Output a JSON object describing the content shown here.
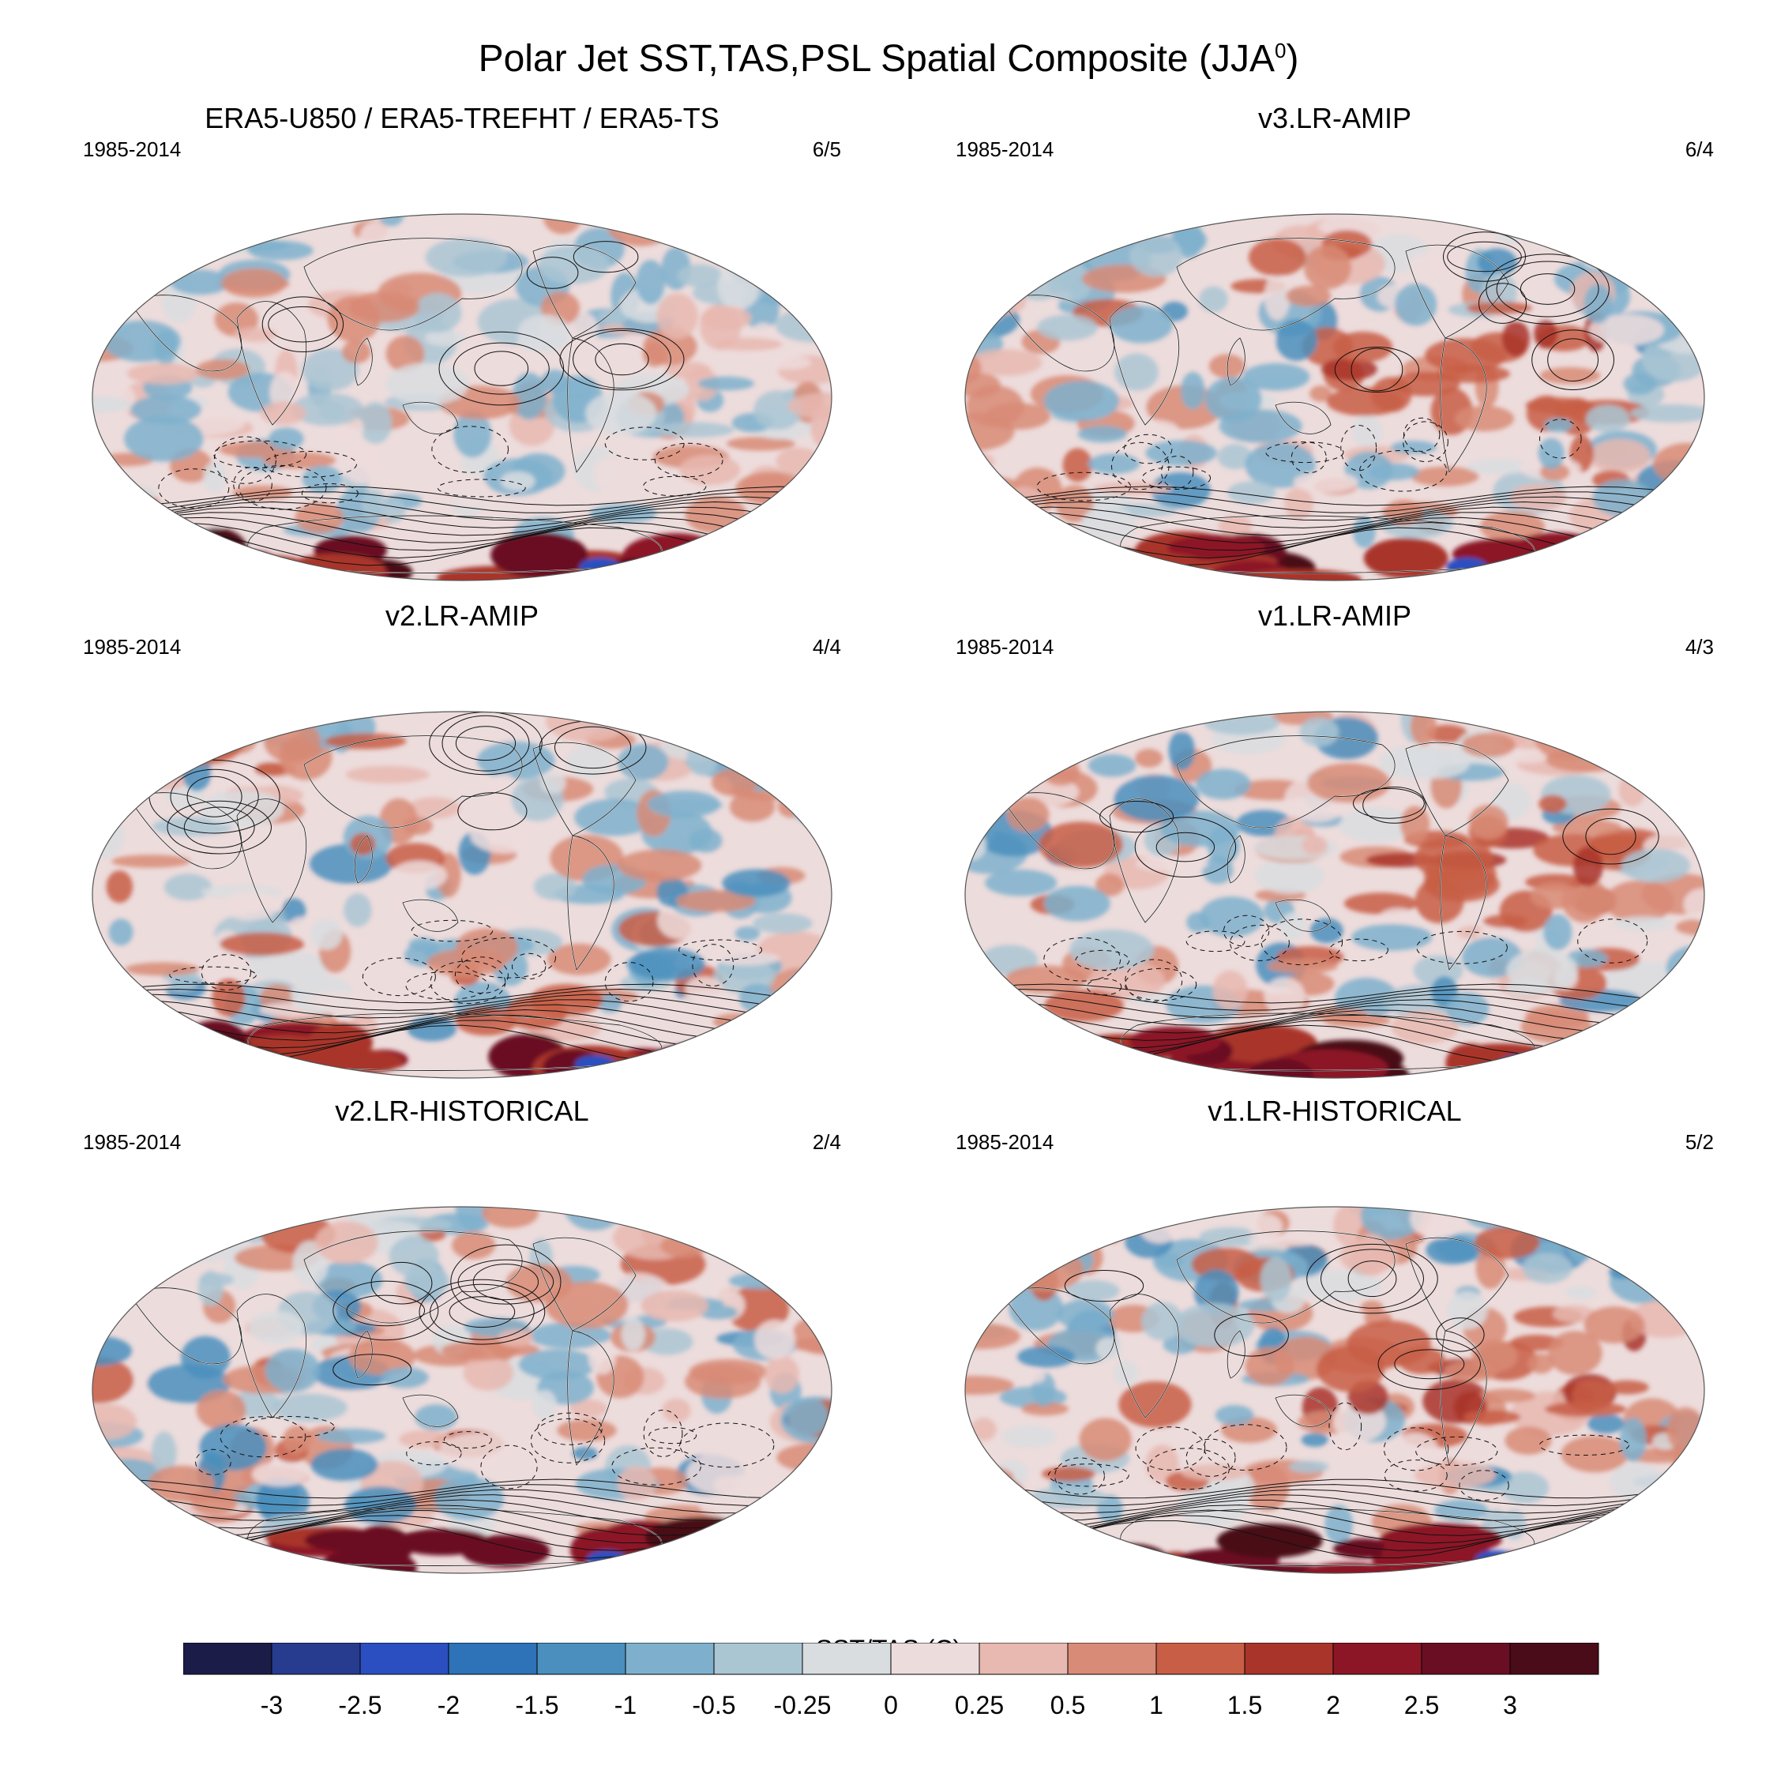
{
  "figure": {
    "title_text": "Polar Jet SST,TAS,PSL Spatial Composite (JJA",
    "title_sup": "0",
    "title_close": ")"
  },
  "panels": [
    {
      "title": "ERA5-U850 / ERA5-TREFHT / ERA5-TS",
      "period": "1985-2014",
      "count": "6/5",
      "seed": 11,
      "regime": "era5"
    },
    {
      "title": "v3.LR-AMIP",
      "period": "1985-2014",
      "count": "6/4",
      "seed": 23,
      "regime": "enso"
    },
    {
      "title": "v2.LR-AMIP",
      "period": "1985-2014",
      "count": "4/4",
      "seed": 37,
      "regime": "mixed"
    },
    {
      "title": "v1.LR-AMIP",
      "period": "1985-2014",
      "count": "4/3",
      "seed": 41,
      "regime": "enso"
    },
    {
      "title": "v2.LR-HISTORICAL",
      "period": "1985-2014",
      "count": "2/4",
      "seed": 53,
      "regime": "mixed"
    },
    {
      "title": "v1.LR-HISTORICAL",
      "period": "1985-2014",
      "count": "5/2",
      "seed": 67,
      "regime": "enso"
    }
  ],
  "colorbar": {
    "title": "SST/TAS (C)",
    "labels": [
      "-3",
      "-2.5",
      "-2",
      "-1.5",
      "-1",
      "-0.5",
      "-0.25",
      "0",
      "0.25",
      "0.5",
      "1",
      "1.5",
      "2",
      "2.5",
      "3"
    ],
    "levels": [
      -3,
      -2.5,
      -2,
      -1.5,
      -1,
      -0.5,
      -0.25,
      0,
      0.25,
      0.5,
      1,
      1.5,
      2,
      2.5,
      3
    ],
    "colors": [
      "#1b1c48",
      "#273c8e",
      "#2b4fc0",
      "#2e72b8",
      "#4a8fbd",
      "#7eb0cd",
      "#aac6d3",
      "#d9dde0",
      "#eddcdc",
      "#e7b9b0",
      "#d88b76",
      "#c85e45",
      "#a93429",
      "#8c1626",
      "#6a0f23",
      "#4a0c19"
    ]
  }
}
